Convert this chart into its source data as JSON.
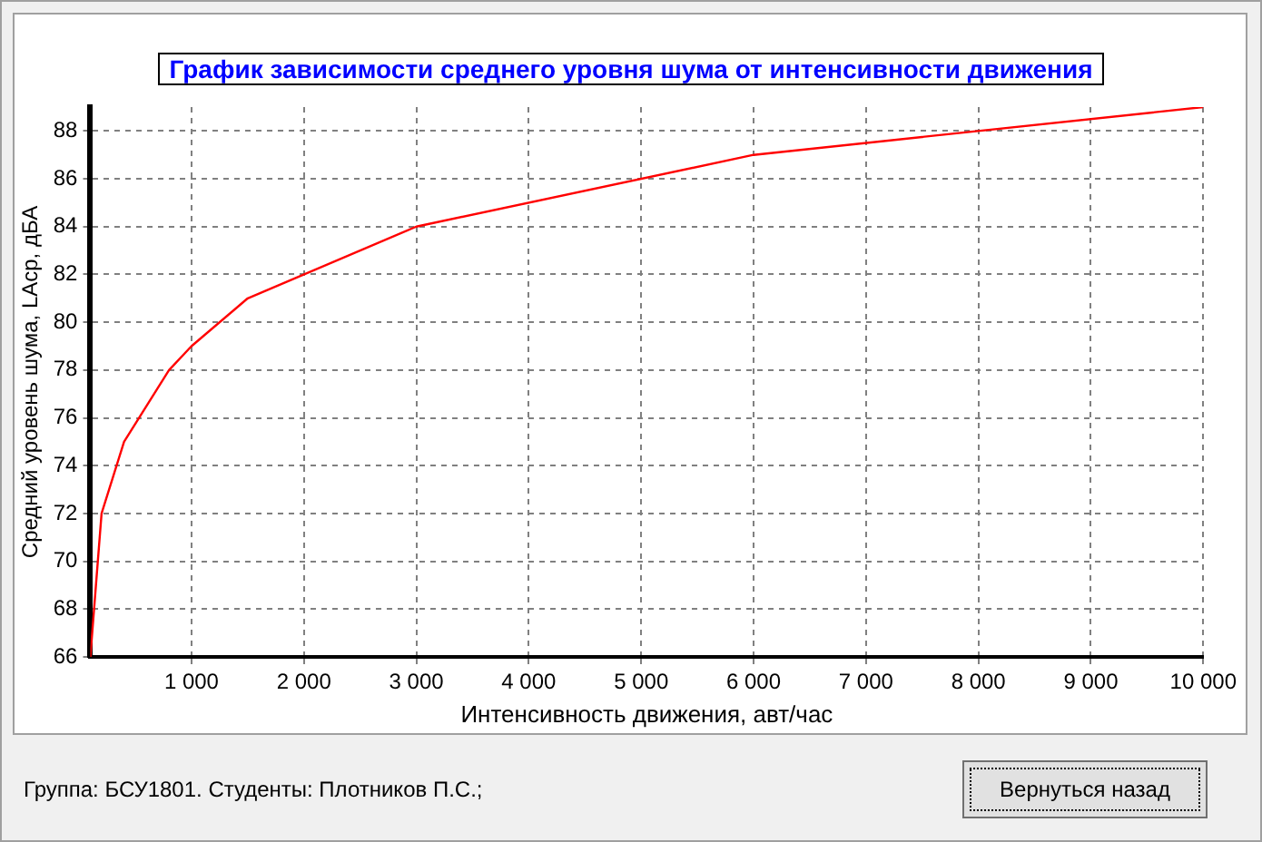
{
  "chart_data": {
    "type": "line",
    "title": "График зависимости среднего уровня шума от интенсивности движения",
    "xlabel": "Интенсивность движения, авт/час",
    "ylabel": "Средний уровень шума, LАср, дБА",
    "x": [
      100,
      150,
      200,
      400,
      800,
      1000,
      1500,
      3000,
      6000,
      10000
    ],
    "series": [
      {
        "color": "#ff0000",
        "values": [
          66,
          69,
          72,
          75,
          78,
          79,
          81,
          84,
          87,
          89
        ]
      }
    ],
    "xlim": [
      100,
      10000
    ],
    "ylim": [
      66,
      89
    ],
    "xticks": [
      {
        "value": 1000,
        "label": "1 000"
      },
      {
        "value": 2000,
        "label": "2 000"
      },
      {
        "value": 3000,
        "label": "3 000"
      },
      {
        "value": 4000,
        "label": "4 000"
      },
      {
        "value": 5000,
        "label": "5 000"
      },
      {
        "value": 6000,
        "label": "6 000"
      },
      {
        "value": 7000,
        "label": "7 000"
      },
      {
        "value": 8000,
        "label": "8 000"
      },
      {
        "value": 9000,
        "label": "9 000"
      },
      {
        "value": 10000,
        "label": "10 000"
      }
    ],
    "yticks": [
      66,
      68,
      70,
      72,
      74,
      76,
      78,
      80,
      82,
      84,
      86,
      88
    ],
    "grid": true,
    "legend": false,
    "marker": "none",
    "line_style": "solid",
    "annotations": [
      "Группа: БСУ1801. Студенты: Плотников П.С.;",
      "Вернуться назад"
    ]
  }
}
